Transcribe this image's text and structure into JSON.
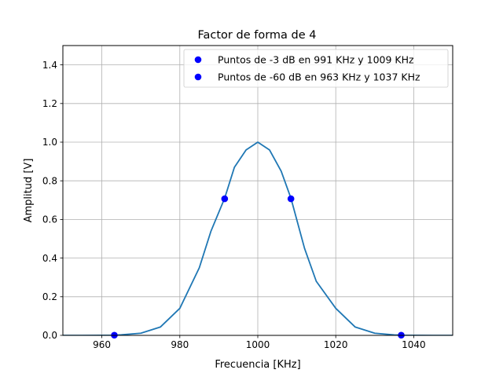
{
  "chart_data": {
    "type": "line",
    "title": "Factor de forma de 4",
    "xlabel": "Frecuencia [KHz]",
    "ylabel": "Amplitud [V]",
    "xlim": [
      950,
      1050
    ],
    "ylim": [
      0,
      1.5
    ],
    "xticks": [
      960,
      980,
      1000,
      1020,
      1040
    ],
    "yticks": [
      0.0,
      0.2,
      0.4,
      0.6,
      0.8,
      1.0,
      1.2,
      1.4
    ],
    "xtick_labels": [
      "960",
      "980",
      "1000",
      "1020",
      "1040"
    ],
    "ytick_labels": [
      "0.0",
      "0.2",
      "0.4",
      "0.6",
      "0.8",
      "1.0",
      "1.2",
      "1.4"
    ],
    "grid": true,
    "legend_position": "top-right",
    "series": [
      {
        "kind": "line",
        "color": "#1f77b4",
        "x": [
          950,
          955,
          960,
          963,
          965,
          970,
          975,
          980,
          985,
          988,
          991.5,
          994,
          997,
          1000,
          1003,
          1006,
          1008.5,
          1012,
          1015,
          1020,
          1025,
          1030,
          1035,
          1037,
          1040,
          1045,
          1050
        ],
        "y": [
          1e-05,
          6e-05,
          0.0005,
          0.001,
          0.003,
          0.011,
          0.043,
          0.14,
          0.35,
          0.54,
          0.71,
          0.87,
          0.96,
          1.0,
          0.96,
          0.85,
          0.71,
          0.45,
          0.28,
          0.14,
          0.043,
          0.011,
          0.0025,
          0.001,
          0.0005,
          6e-05,
          1e-05
        ]
      },
      {
        "kind": "markers",
        "name": "Puntos de -3 dB en 991 KHz y 1009 KHz",
        "color": "#0000ff",
        "x": [
          991.5,
          1008.5
        ],
        "y": [
          0.707,
          0.707
        ]
      },
      {
        "kind": "markers",
        "name": "Puntos de -60 dB en 963 KHz y 1037 KHz",
        "color": "#0000ff",
        "x": [
          963.2,
          1036.8
        ],
        "y": [
          0.001,
          0.001
        ]
      }
    ]
  }
}
